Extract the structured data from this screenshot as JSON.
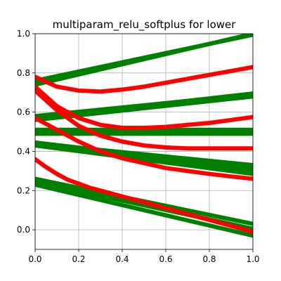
{
  "chart_data": {
    "type": "line",
    "title": "multiparam_relu_softplus for lower",
    "xlabel": "",
    "ylabel": "",
    "xlim": [
      0.0,
      1.0
    ],
    "ylim": [
      -0.1,
      1.0
    ],
    "x_ticks": [
      "0.0",
      "0.2",
      "0.4",
      "0.6",
      "0.8",
      "1.0"
    ],
    "y_ticks": [
      "0.0",
      "0.2",
      "0.4",
      "0.6",
      "0.8",
      "1.0"
    ],
    "grid": true,
    "legend": "none",
    "colors": {
      "green": "#008000",
      "red": "#ff0000"
    },
    "series": [
      {
        "color": "green",
        "x": [
          0.0,
          1.0
        ],
        "y": [
          0.74,
          1.0
        ]
      },
      {
        "color": "green",
        "x": [
          0.0,
          1.0
        ],
        "y": [
          0.76,
          0.995
        ]
      },
      {
        "color": "green",
        "x": [
          0.0,
          1.0
        ],
        "y": [
          0.56,
          0.68
        ]
      },
      {
        "color": "green",
        "x": [
          0.0,
          1.0
        ],
        "y": [
          0.57,
          0.695
        ]
      },
      {
        "color": "green",
        "x": [
          0.0,
          1.0
        ],
        "y": [
          0.58,
          0.69
        ]
      },
      {
        "color": "green",
        "x": [
          0.0,
          1.0
        ],
        "y": [
          0.49,
          0.49
        ]
      },
      {
        "color": "green",
        "x": [
          0.0,
          1.0
        ],
        "y": [
          0.5,
          0.5
        ]
      },
      {
        "color": "green",
        "x": [
          0.0,
          1.0
        ],
        "y": [
          0.51,
          0.51
        ]
      },
      {
        "color": "green",
        "x": [
          0.0,
          1.0
        ],
        "y": [
          0.44,
          0.33
        ]
      },
      {
        "color": "green",
        "x": [
          0.0,
          1.0
        ],
        "y": [
          0.445,
          0.315
        ]
      },
      {
        "color": "green",
        "x": [
          0.0,
          1.0
        ],
        "y": [
          0.435,
          0.3
        ]
      },
      {
        "color": "green",
        "x": [
          0.0,
          1.0
        ],
        "y": [
          0.43,
          0.285
        ]
      },
      {
        "color": "green",
        "x": [
          0.0,
          1.0
        ],
        "y": [
          0.26,
          0.03
        ]
      },
      {
        "color": "green",
        "x": [
          0.0,
          1.0
        ],
        "y": [
          0.245,
          0.005
        ]
      },
      {
        "color": "green",
        "x": [
          0.0,
          1.0
        ],
        "y": [
          0.23,
          -0.03
        ]
      },
      {
        "color": "red",
        "x": [
          0.0,
          0.1,
          0.2,
          0.3,
          0.4,
          0.5,
          0.6,
          0.7,
          0.8,
          0.9,
          1.0
        ],
        "y": [
          0.78,
          0.73,
          0.71,
          0.705,
          0.715,
          0.73,
          0.75,
          0.77,
          0.79,
          0.81,
          0.83
        ]
      },
      {
        "color": "red",
        "x": [
          0.0,
          0.1,
          0.2,
          0.3,
          0.4,
          0.5,
          0.6,
          0.7,
          0.8,
          0.9,
          1.0
        ],
        "y": [
          0.73,
          0.63,
          0.57,
          0.535,
          0.52,
          0.52,
          0.525,
          0.535,
          0.545,
          0.56,
          0.575
        ]
      },
      {
        "color": "red",
        "x": [
          0.0,
          0.1,
          0.2,
          0.3,
          0.4,
          0.5,
          0.6,
          0.7,
          0.8,
          0.9,
          1.0
        ],
        "y": [
          0.71,
          0.61,
          0.53,
          0.48,
          0.45,
          0.43,
          0.42,
          0.415,
          0.415,
          0.415,
          0.415
        ]
      },
      {
        "color": "red",
        "x": [
          0.0,
          0.1,
          0.2,
          0.3,
          0.4,
          0.5,
          0.6,
          0.7,
          0.8,
          0.9,
          1.0
        ],
        "y": [
          0.57,
          0.51,
          0.45,
          0.4,
          0.365,
          0.34,
          0.315,
          0.3,
          0.285,
          0.272,
          0.26
        ]
      },
      {
        "color": "red",
        "x": [
          0.0,
          0.05,
          0.1,
          0.15,
          0.2,
          0.25,
          0.3,
          0.4,
          0.5,
          0.6,
          0.7,
          0.8,
          0.9,
          1.0
        ],
        "y": [
          0.36,
          0.32,
          0.285,
          0.255,
          0.235,
          0.215,
          0.2,
          0.17,
          0.14,
          0.11,
          0.08,
          0.05,
          0.02,
          -0.01
        ]
      }
    ]
  }
}
